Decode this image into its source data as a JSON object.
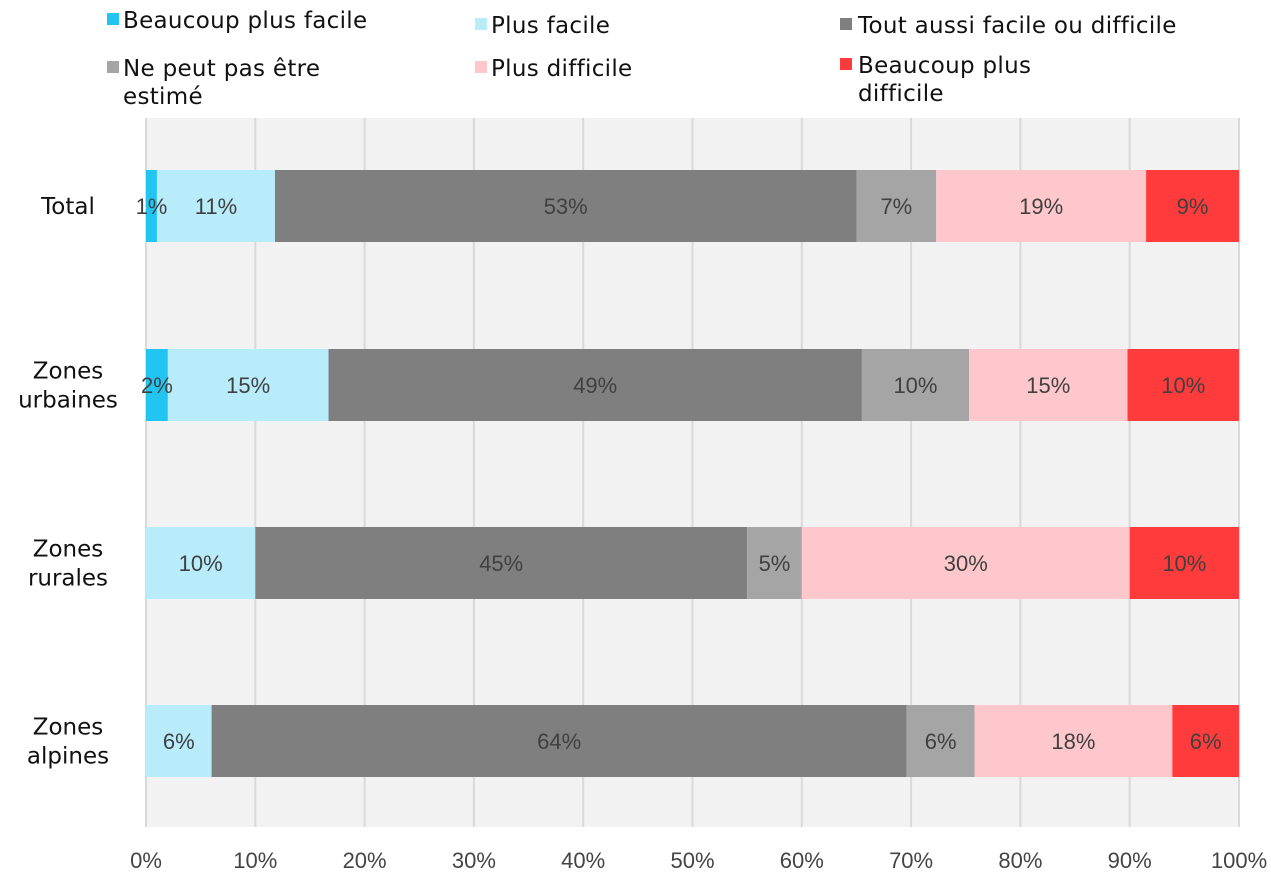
{
  "chart_data": {
    "type": "bar",
    "orientation": "horizontal",
    "stacked": true,
    "categories": [
      [
        "Total"
      ],
      [
        "Zones",
        "urbaines"
      ],
      [
        "Zones",
        "rurales"
      ],
      [
        "Zones",
        "alpines"
      ]
    ],
    "series": [
      {
        "name": [
          "Beaucoup plus facile"
        ],
        "color": "#22c4f2",
        "values": [
          1,
          2,
          0,
          0
        ],
        "labels": [
          "1%",
          "2%",
          "",
          ""
        ]
      },
      {
        "name": [
          "Plus facile"
        ],
        "color": "#b8ecfb",
        "values": [
          10.8,
          14.7,
          10,
          6
        ],
        "labels": [
          "11%",
          "15%",
          "10%",
          "6%"
        ]
      },
      {
        "name": [
          "Tout aussi facile ou difficile"
        ],
        "color": "#7f7f7f",
        "values": [
          53.2,
          48.8,
          45,
          63.6
        ],
        "labels": [
          "53%",
          "49%",
          "45%",
          "64%"
        ]
      },
      {
        "name": [
          "Ne peut pas être",
          "estimé"
        ],
        "color": "#a5a5a5",
        "values": [
          7.3,
          9.8,
          5,
          6.2
        ],
        "labels": [
          "7%",
          "10%",
          "5%",
          "6%"
        ]
      },
      {
        "name": [
          "Plus difficile"
        ],
        "color": "#fec7cb",
        "values": [
          19.2,
          14.5,
          30,
          18.1
        ],
        "labels": [
          "19%",
          "15%",
          "30%",
          "18%"
        ]
      },
      {
        "name": [
          "Beaucoup plus",
          "difficile"
        ],
        "color": "#ff3b3b",
        "values": [
          8.5,
          10.2,
          10,
          6.1
        ],
        "labels": [
          "9%",
          "10%",
          "10%",
          "6%"
        ]
      }
    ],
    "xlim": [
      0,
      100
    ],
    "xticks": [
      "0%",
      "10%",
      "20%",
      "30%",
      "40%",
      "50%",
      "60%",
      "70%",
      "80%",
      "90%",
      "100%"
    ],
    "grid": true,
    "legend_position": "top",
    "plot_background": "#f2f2f2"
  }
}
